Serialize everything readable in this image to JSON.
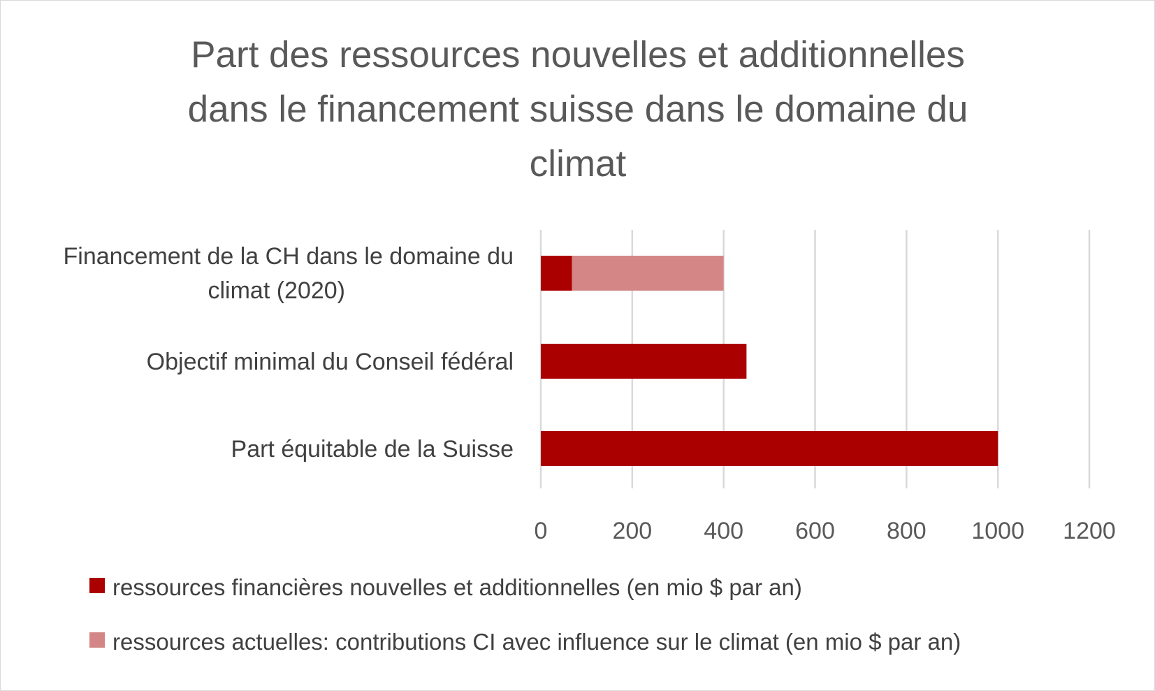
{
  "chart_data": {
    "type": "bar",
    "orientation": "horizontal",
    "stacked": true,
    "title_lines": [
      "Part des ressources nouvelles et additionnelles",
      "dans le financement suisse dans le domaine du",
      "climat"
    ],
    "categories": [
      [
        "Financement de la CH dans le domaine du",
        "climat (2020)"
      ],
      [
        "Objectif minimal du Conseil fédéral"
      ],
      [
        "Part équitable de la Suisse"
      ]
    ],
    "series": [
      {
        "name": "ressources financières nouvelles et additionnelles (en mio $ par an)",
        "color": "#aa0000",
        "values": [
          68,
          450,
          1000
        ]
      },
      {
        "name": "ressources actuelles: contributions CI avec influence sur le climat (en mio $ par an)",
        "color": "#d48686",
        "values": [
          332,
          0,
          0
        ]
      }
    ],
    "xlim": [
      0,
      1200
    ],
    "xticks": [
      "0",
      "200",
      "400",
      "600",
      "800",
      "1000",
      "1200"
    ],
    "grid": true,
    "legend_position": "bottom"
  }
}
